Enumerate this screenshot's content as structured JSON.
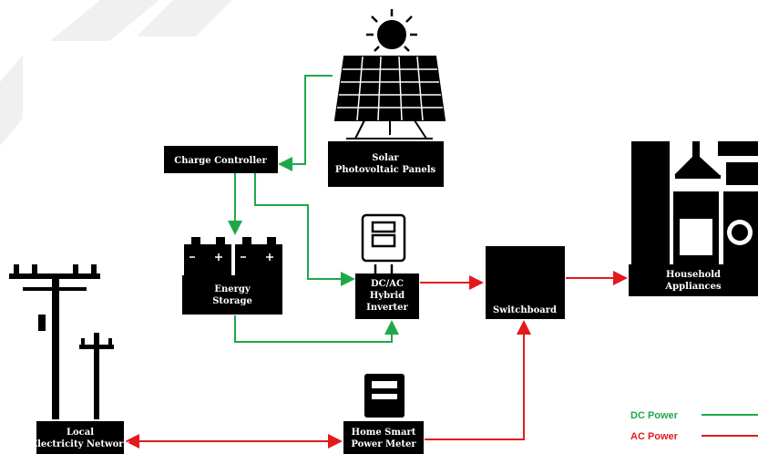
{
  "nodes": [
    {
      "label": [
        "Charge Controller"
      ]
    },
    {
      "label": [
        "Solar",
        "Photovoltaic Panels"
      ]
    },
    {
      "label": [
        "Energy",
        "Storage"
      ]
    },
    {
      "label": [
        "DC/AC",
        "Hybrid",
        "Inverter"
      ]
    },
    {
      "label": [
        "Switchboard"
      ]
    },
    {
      "label": [
        "Household",
        "Appliances"
      ]
    },
    {
      "label": [
        "Local",
        "Electricity Network"
      ]
    },
    {
      "label": [
        "Home Smart",
        "Power Meter"
      ]
    }
  ],
  "legend": [
    {
      "label": "DC Power",
      "color": "#1ea84a"
    },
    {
      "label": "AC Power",
      "color": "#e4191c"
    }
  ]
}
